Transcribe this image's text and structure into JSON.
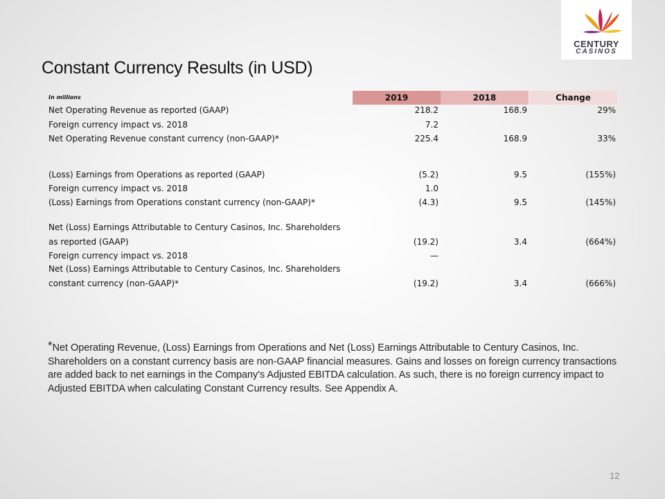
{
  "header": {
    "title": "Constant Currency Results (in USD)"
  },
  "logo": {
    "line1": "CENTURY",
    "line2": "CASINOS"
  },
  "table": {
    "unit_label": "In millions",
    "columns": [
      "2019",
      "2018",
      "Change"
    ],
    "rows": [
      {
        "label": [
          "Net Operating Revenue as reported (GAAP)"
        ],
        "cells": [
          "218.2",
          "168.9",
          "29%"
        ]
      },
      {
        "label": [
          "Foreign currency impact vs. 2018"
        ],
        "cells": [
          "7.2",
          null,
          null
        ]
      },
      {
        "label": [
          "Net Operating Revenue constant currency (non-GAAP)*"
        ],
        "cells": [
          "225.4",
          "168.9",
          "33%"
        ]
      },
      {
        "label": [
          "(Loss) Earnings from Operations as reported (GAAP)"
        ],
        "cells": [
          "(5.2)",
          "9.5",
          "(155%)"
        ]
      },
      {
        "label": [
          "Foreign currency impact vs. 2018"
        ],
        "cells": [
          "1.0",
          null,
          null
        ]
      },
      {
        "label": [
          "(Loss) Earnings from Operations constant currency (non-GAAP)*"
        ],
        "cells": [
          "(4.3)",
          "9.5",
          "(145%)"
        ]
      },
      {
        "label": [
          "Net (Loss) Earnings Attributable to Century Casinos, Inc. Shareholders",
          "as reported (GAAP)"
        ],
        "cells": [
          "(19.2)",
          "3.4",
          "(664%)"
        ]
      },
      {
        "label": [
          "Foreign currency impact vs. 2018"
        ],
        "cells": [
          "—",
          null,
          null
        ]
      },
      {
        "label": [
          "Net (Loss) Earnings Attributable to Century Casinos, Inc. Shareholders",
          "constant currency (non-GAAP)*"
        ],
        "cells": [
          "(19.2)",
          "3.4",
          "(666%)"
        ]
      }
    ]
  },
  "footnote": {
    "marker": "*",
    "text": "Net Operating Revenue, (Loss) Earnings from Operations and Net (Loss) Earnings Attributable to Century Casinos, Inc. Shareholders on a constant currency basis are non-GAAP financial measures. Gains and losses on foreign currency transactions are added back to net earnings in the Company's Adjusted EBITDA calculation. As such, there is no foreign currency impact to Adjusted EBITDA when calculating Constant Currency results. See Appendix A."
  },
  "page_number": "12"
}
